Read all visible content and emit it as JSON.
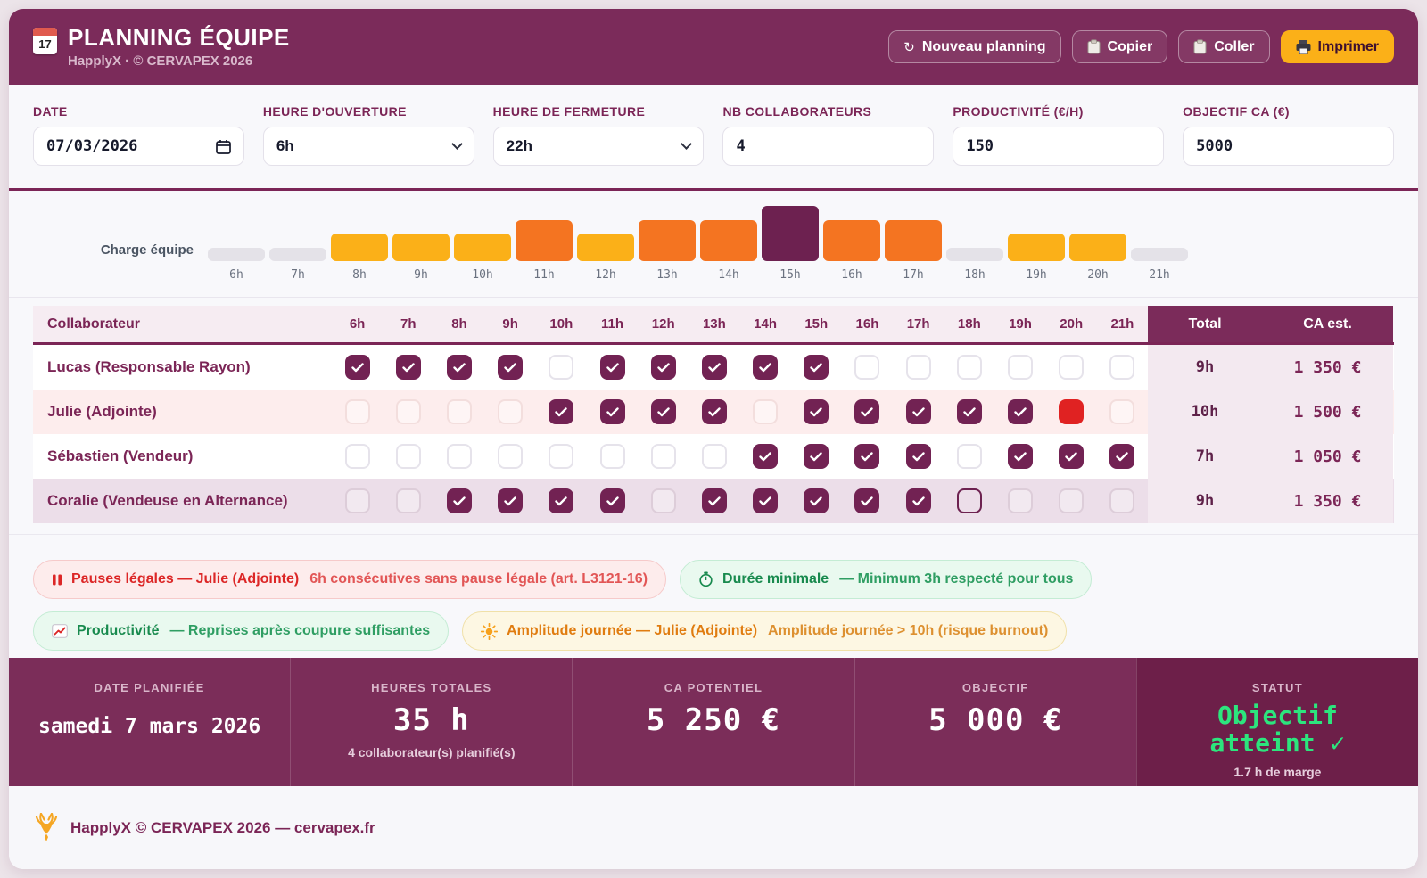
{
  "colors": {
    "primary": "#7b2b5a",
    "accent_amber": "#fbb018",
    "conflict_red": "#e02222",
    "status_green": "#2ce57d",
    "bar_orange": "#f47421",
    "bar_yellow": "#fbb018",
    "bar_purple": "#6d2150",
    "bar_gray": "#e4e2e8"
  },
  "header": {
    "title": "PLANNING ÉQUIPE",
    "subtitle": "HapplyX · © CERVAPEX 2026",
    "calendar_icon_day": "17",
    "buttons": [
      {
        "name": "nouveau-planning-button",
        "label": "Nouveau planning",
        "icon": "refresh-icon",
        "primary": false
      },
      {
        "name": "copier-button",
        "label": "Copier",
        "icon": "clipboard-icon",
        "primary": false
      },
      {
        "name": "coller-button",
        "label": "Coller",
        "icon": "clipboard-icon",
        "primary": false
      },
      {
        "name": "imprimer-button",
        "label": "Imprimer",
        "icon": "printer-icon",
        "primary": true
      }
    ]
  },
  "filters": [
    {
      "name": "date-field",
      "label": "DATE",
      "value": "07/03/2026",
      "type": "date"
    },
    {
      "name": "heure-ouverture-select",
      "label": "HEURE D'OUVERTURE",
      "value": "6h",
      "type": "select"
    },
    {
      "name": "heure-fermeture-select",
      "label": "HEURE DE FERMETURE",
      "value": "22h",
      "type": "select"
    },
    {
      "name": "nb-collaborateurs-input",
      "label": "NB COLLABORATEURS",
      "value": "4",
      "type": "number"
    },
    {
      "name": "productivite-input",
      "label": "PRODUCTIVITÉ (€/H)",
      "value": "150",
      "type": "number"
    },
    {
      "name": "objectif-ca-input",
      "label": "OBJECTIF CA (€)",
      "value": "5000",
      "type": "number"
    }
  ],
  "chart_data": {
    "type": "bar",
    "title": "Charge équipe",
    "categories": [
      "6h",
      "7h",
      "8h",
      "9h",
      "10h",
      "11h",
      "12h",
      "13h",
      "14h",
      "15h",
      "16h",
      "17h",
      "18h",
      "19h",
      "20h",
      "21h"
    ],
    "values": [
      1,
      1,
      2,
      2,
      2,
      3,
      2,
      3,
      3,
      4,
      3,
      3,
      1,
      2,
      2,
      1
    ],
    "unit": "collaborateurs",
    "palette_by_value": {
      "1": "#e4e2e8",
      "2": "#fbb018",
      "3": "#f47421",
      "4": "#6d2150"
    }
  },
  "table": {
    "name_header": "Collaborateur",
    "hour_headers": [
      "6h",
      "7h",
      "8h",
      "9h",
      "10h",
      "11h",
      "12h",
      "13h",
      "14h",
      "15h",
      "16h",
      "17h",
      "18h",
      "19h",
      "20h",
      "21h"
    ],
    "total_header": "Total",
    "ca_header": "CA est.",
    "rows": [
      {
        "name": "Lucas (Responsable Rayon)",
        "tint": "white",
        "cells": [
          "checked",
          "checked",
          "checked",
          "checked",
          "empty",
          "checked",
          "checked",
          "checked",
          "checked",
          "checked",
          "empty",
          "empty",
          "empty",
          "empty",
          "empty",
          "empty"
        ],
        "total": "9h",
        "ca": "1 350 €"
      },
      {
        "name": "Julie (Adjointe)",
        "tint": "pink",
        "cells": [
          "empty",
          "empty",
          "empty",
          "empty",
          "checked",
          "checked",
          "checked",
          "checked",
          "empty",
          "checked",
          "checked",
          "checked",
          "checked",
          "checked",
          "conflict",
          "empty"
        ],
        "total": "10h",
        "ca": "1 500 €"
      },
      {
        "name": "Sébastien (Vendeur)",
        "tint": "white",
        "cells": [
          "empty",
          "empty",
          "empty",
          "empty",
          "empty",
          "empty",
          "empty",
          "empty",
          "checked",
          "checked",
          "checked",
          "checked",
          "empty",
          "checked",
          "checked",
          "checked"
        ],
        "total": "7h",
        "ca": "1 050 €"
      },
      {
        "name": "Coralie (Vendeuse en Alternance)",
        "tint": "mauve",
        "cells": [
          "empty",
          "empty",
          "checked",
          "checked",
          "checked",
          "checked",
          "empty",
          "checked",
          "checked",
          "checked",
          "checked",
          "checked",
          "outlined",
          "empty",
          "empty",
          "empty"
        ],
        "total": "9h",
        "ca": "1 350 €"
      }
    ]
  },
  "alerts": [
    {
      "name": "alert-pauses-legales",
      "severity": "error",
      "icon": "pause-icon",
      "title": "Pauses légales — Julie (Adjointe)",
      "message": "6h consécutives sans pause légale (art. L3121-16)",
      "row": 1
    },
    {
      "name": "alert-duree-minimale",
      "severity": "success",
      "icon": "timer-icon",
      "title": "Durée minimale",
      "message": "— Minimum 3h respecté pour tous",
      "row": 1
    },
    {
      "name": "alert-productivite",
      "severity": "success",
      "icon": "chart-icon",
      "title": "Productivité",
      "message": "— Reprises après coupure suffisantes",
      "row": 2
    },
    {
      "name": "alert-amplitude",
      "severity": "warning",
      "icon": "sun-icon",
      "title": "Amplitude journée — Julie (Adjointe)",
      "message": "Amplitude journée > 10h (risque burnout)",
      "row": 2
    }
  ],
  "summary": {
    "items": [
      {
        "name": "summary-date",
        "label": "DATE PLANIFIÉE",
        "value": "samedi 7 mars 2026",
        "style": "date"
      },
      {
        "name": "summary-heures",
        "label": "HEURES TOTALES",
        "value": "35 h",
        "sub": "4 collaborateur(s) planifié(s)",
        "style": "big"
      },
      {
        "name": "summary-ca",
        "label": "CA POTENTIEL",
        "value": "5 250 €",
        "style": "big"
      },
      {
        "name": "summary-objectif",
        "label": "OBJECTIF",
        "value": "5 000 €",
        "style": "big"
      },
      {
        "name": "summary-statut",
        "label": "STATUT",
        "value": "Objectif atteint ✓",
        "sub": "1.7 h de marge",
        "style": "status",
        "dark": true
      }
    ]
  },
  "footer": {
    "logo": "stag-icon",
    "text": "HapplyX © CERVAPEX 2026 — cervapex.fr"
  }
}
